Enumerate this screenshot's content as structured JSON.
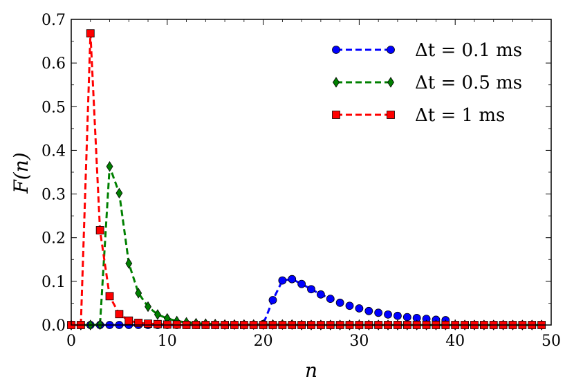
{
  "chart_data": {
    "type": "line",
    "xlabel": "n",
    "ylabel": "F(n)",
    "xlim": [
      0,
      50
    ],
    "ylim": [
      0,
      0.7
    ],
    "xticks": [
      "0",
      "10",
      "20",
      "30",
      "40",
      "50"
    ],
    "yticks": [
      "0.0",
      "0.1",
      "0.2",
      "0.3",
      "0.4",
      "0.5",
      "0.6",
      "0.7"
    ],
    "grid": false,
    "legend_position": "top-right",
    "series": [
      {
        "name": "Δt = 0.1 ms",
        "color": "#0000ff",
        "marker": "circle",
        "x": [
          0,
          1,
          2,
          3,
          4,
          5,
          6,
          7,
          8,
          9,
          10,
          11,
          12,
          13,
          14,
          15,
          16,
          17,
          18,
          19,
          20,
          21,
          22,
          23,
          24,
          25,
          26,
          27,
          28,
          29,
          30,
          31,
          32,
          33,
          34,
          35,
          36,
          37,
          38,
          39
        ],
        "y": [
          0,
          0,
          0,
          0,
          0,
          0,
          0,
          0,
          0,
          0,
          0,
          0,
          0,
          0,
          0,
          0,
          0,
          0,
          0,
          0,
          0.002,
          0.057,
          0.102,
          0.105,
          0.094,
          0.082,
          0.07,
          0.06,
          0.051,
          0.044,
          0.038,
          0.032,
          0.028,
          0.024,
          0.021,
          0.018,
          0.016,
          0.014,
          0.012,
          0.011
        ]
      },
      {
        "name": "Δt = 0.5 ms",
        "color": "#008000",
        "marker": "diamond",
        "x": [
          0,
          1,
          2,
          3,
          4,
          5,
          6,
          7,
          8,
          9,
          10,
          11,
          12,
          13,
          14,
          15,
          16,
          17,
          18,
          19,
          20,
          21,
          22,
          23,
          24,
          25,
          26,
          27,
          28,
          29,
          30,
          31,
          32,
          33,
          34,
          35,
          36,
          37,
          38,
          39,
          40,
          41,
          42,
          43,
          44,
          45,
          46,
          47,
          48,
          49
        ],
        "y": [
          0,
          0,
          0,
          0.001,
          0.363,
          0.302,
          0.141,
          0.073,
          0.042,
          0.024,
          0.015,
          0.009,
          0.006,
          0.004,
          0.003,
          0.002,
          0.001,
          0.001,
          0.001,
          0.001,
          0.001,
          0.001,
          0.001,
          0.001,
          0,
          0,
          0,
          0,
          0,
          0,
          0,
          0,
          0,
          0,
          0,
          0,
          0,
          0,
          0,
          0,
          0,
          0,
          0,
          0,
          0,
          0,
          0,
          0,
          0,
          0
        ]
      },
      {
        "name": "Δt = 1 ms",
        "color": "#ff0000",
        "marker": "square",
        "x": [
          0,
          1,
          2,
          3,
          4,
          5,
          6,
          7,
          8,
          9,
          10,
          11,
          12,
          13,
          14,
          15,
          16,
          17,
          18,
          19,
          20,
          21,
          22,
          23,
          24,
          25,
          26,
          27,
          28,
          29,
          30,
          31,
          32,
          33,
          34,
          35,
          36,
          37,
          38,
          39,
          40,
          41,
          42,
          43,
          44,
          45,
          46,
          47,
          48,
          49
        ],
        "y": [
          0,
          0,
          0.668,
          0.217,
          0.066,
          0.025,
          0.01,
          0.005,
          0.003,
          0.002,
          0.001,
          0.001,
          0,
          0,
          0,
          0,
          0,
          0,
          0,
          0,
          0,
          0,
          0,
          0,
          0,
          0,
          0,
          0,
          0,
          0,
          0,
          0,
          0,
          0,
          0,
          0,
          0,
          0,
          0,
          0,
          0,
          0,
          0,
          0,
          0,
          0,
          0,
          0,
          0,
          0
        ]
      }
    ]
  }
}
